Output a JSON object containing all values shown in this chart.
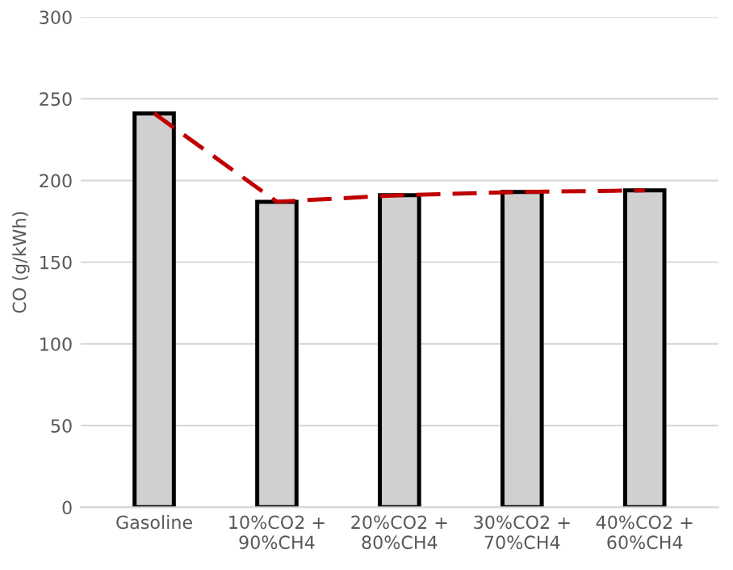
{
  "chart_data": {
    "type": "bar",
    "ylabel": "CO (g/kWh)",
    "categories": [
      "Gasoline",
      "10%CO2 +\n90%CH4",
      "20%CO2 +\n80%CH4",
      "30%CO2 +\n70%CH4",
      "40%CO2 +\n60%CH4"
    ],
    "series": [
      {
        "color": "#d0d0d0",
        "values": [
          241,
          187,
          191,
          193,
          194
        ]
      },
      {
        "type": "line",
        "color": "#c00000",
        "line_style": "dashed",
        "values": [
          241,
          187,
          191,
          193,
          194
        ]
      }
    ],
    "ylim": [
      0,
      300
    ],
    "yticks": [
      0,
      50,
      100,
      150,
      200,
      250,
      300
    ],
    "grid": "y",
    "legend": false
  }
}
